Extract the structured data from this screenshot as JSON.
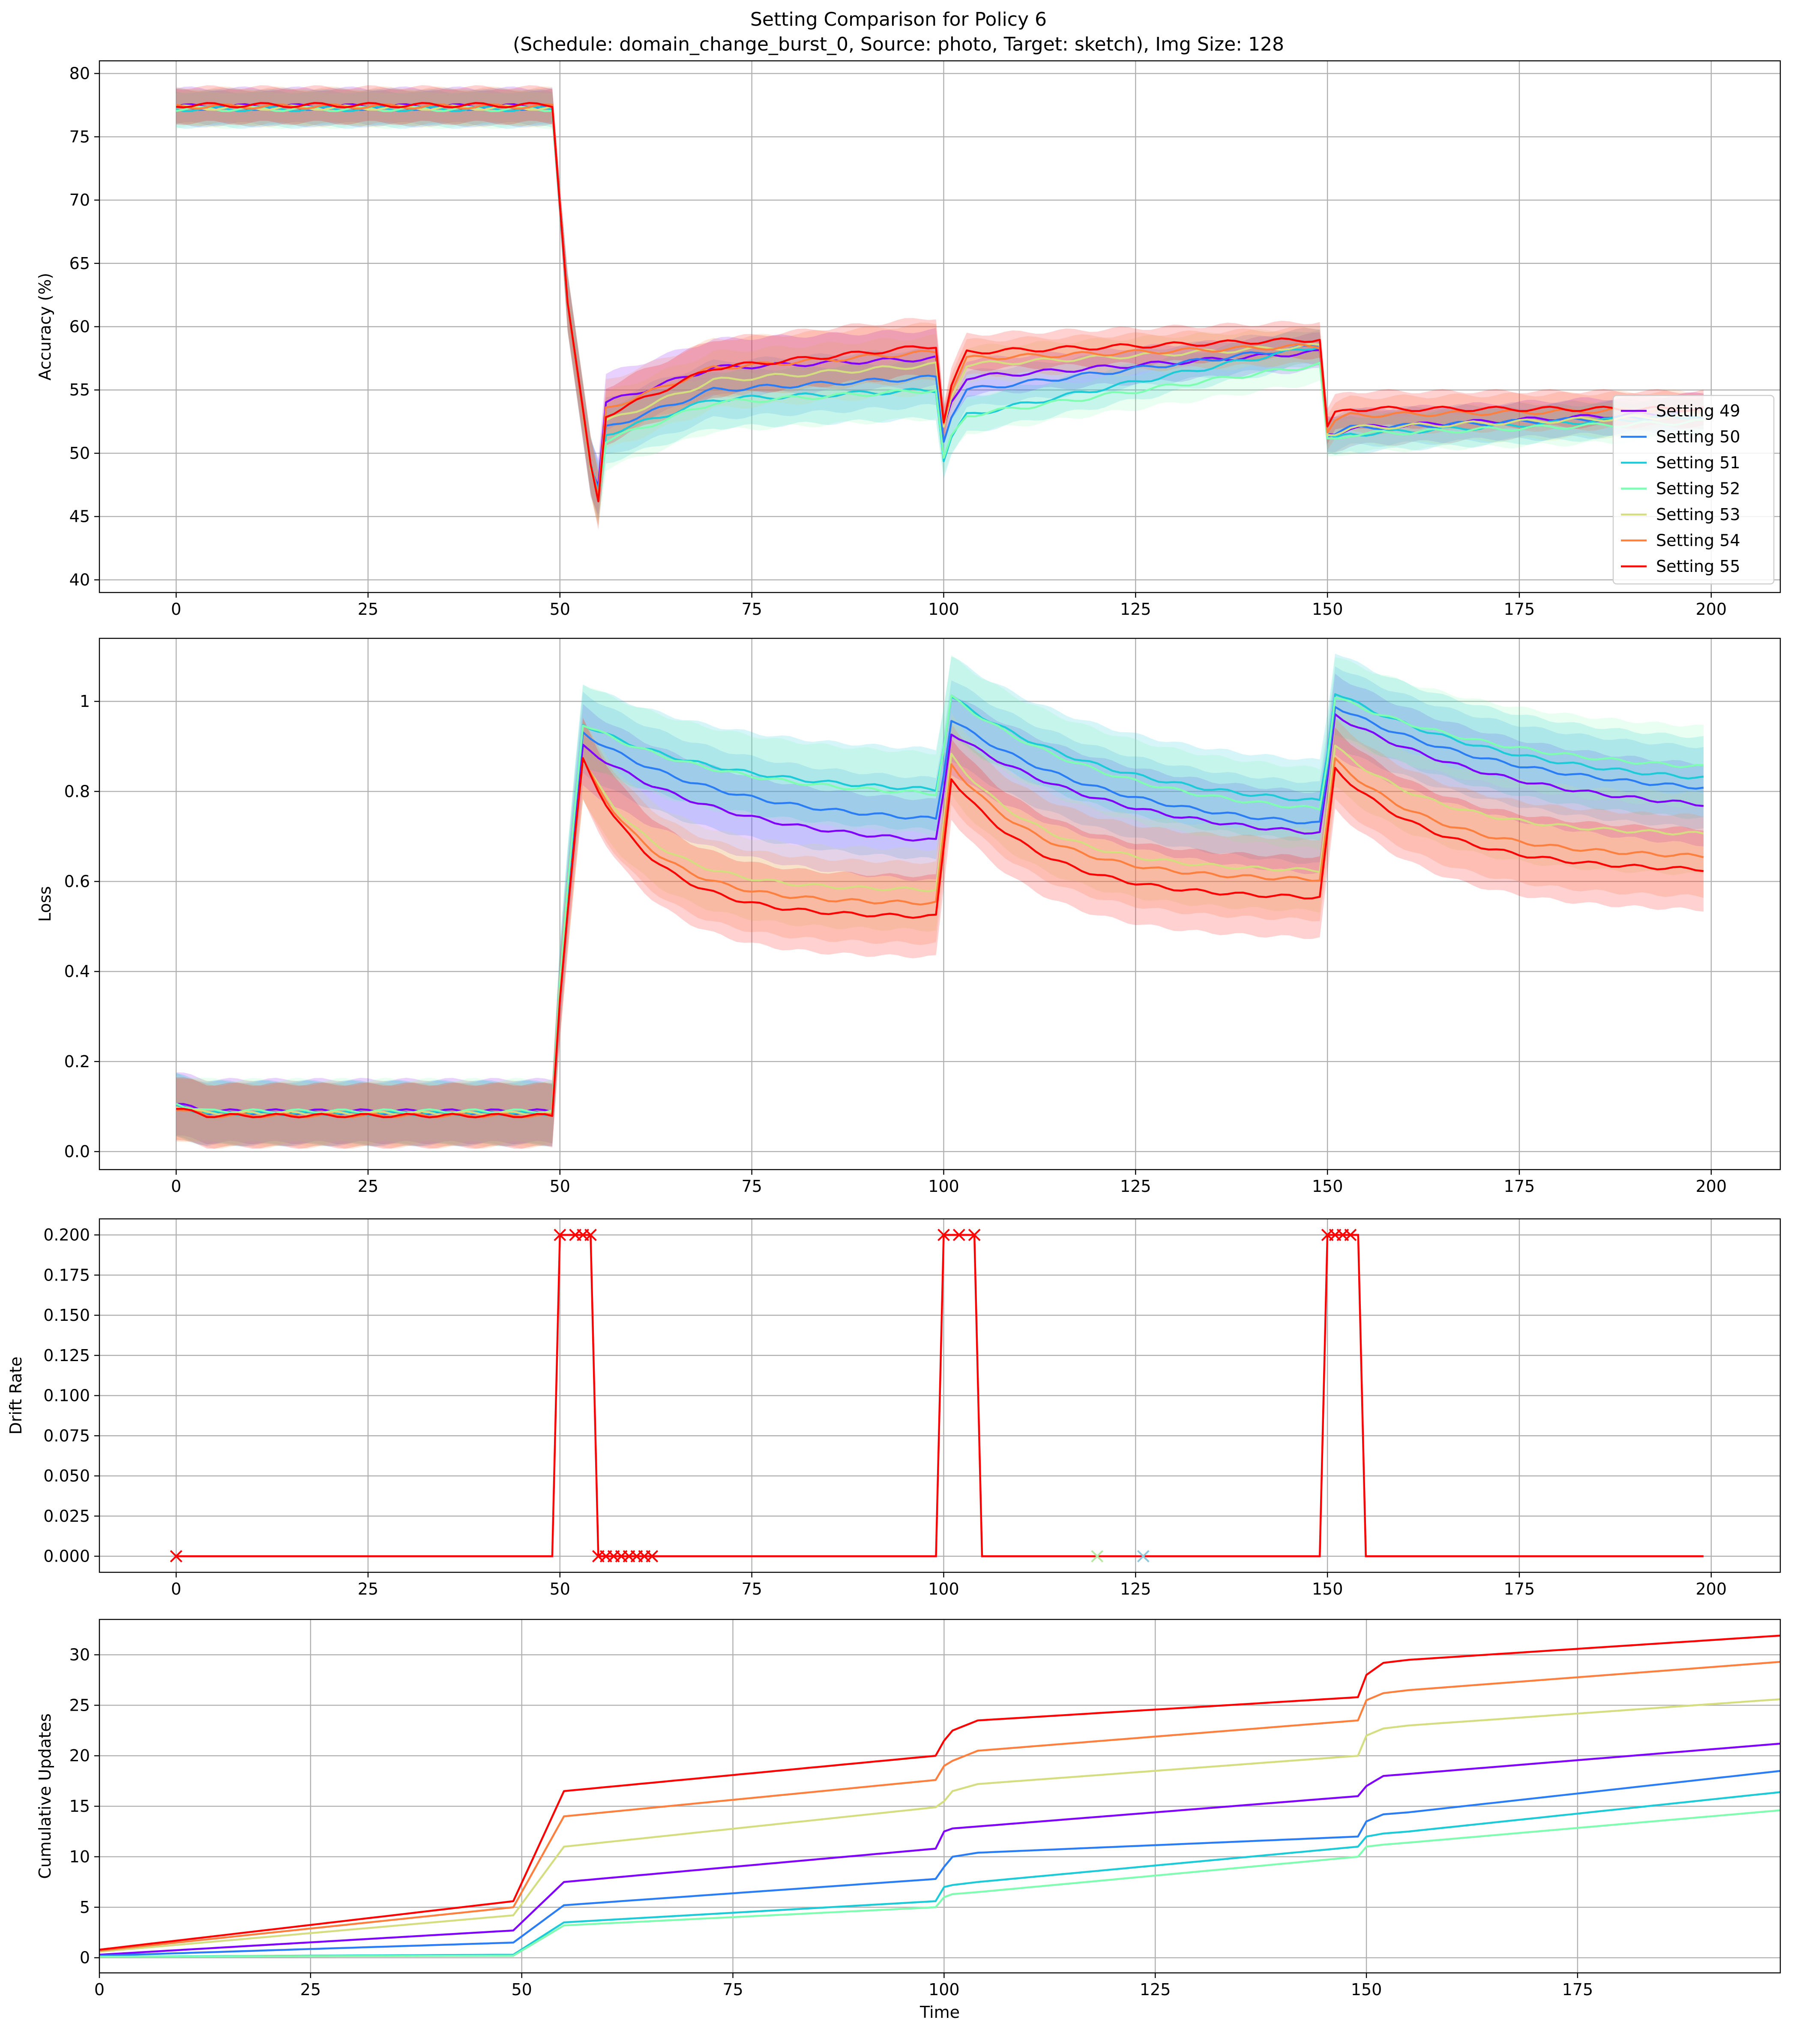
{
  "figure": {
    "title_line1": "Setting Comparison for Policy 6",
    "title_line2": "(Schedule: domain_change_burst_0, Source: photo, Target: sketch), Img Size: 128"
  },
  "series": [
    {
      "name": "Setting 49",
      "color": "#8000ff"
    },
    {
      "name": "Setting 50",
      "color": "#2a7df5"
    },
    {
      "name": "Setting 51",
      "color": "#1ccad8"
    },
    {
      "name": "Setting 52",
      "color": "#7ffeb2"
    },
    {
      "name": "Setting 53",
      "color": "#d4dd80"
    },
    {
      "name": "Setting 54",
      "color": "#ff7f3f"
    },
    {
      "name": "Setting 55",
      "color": "#ff0000"
    }
  ],
  "chart_data": [
    {
      "type": "line",
      "id": "accuracy",
      "ylabel": "Accuracy (%)",
      "xlim": [
        -10,
        209
      ],
      "ylim": [
        39,
        81
      ],
      "xticks": [
        0,
        25,
        50,
        75,
        100,
        125,
        150,
        175,
        200
      ],
      "yticks": [
        40,
        45,
        50,
        55,
        60,
        65,
        70,
        75,
        80
      ],
      "grid": true,
      "legend": "lower-right",
      "band": 1.4,
      "levels": {
        "seg0": [
          77.4,
          77.3,
          77.2,
          77.2,
          77.3,
          77.4,
          77.5
        ],
        "dip": [
          47.5,
          47.0,
          46.8,
          46.6,
          46.5,
          46.4,
          46.2
        ],
        "seg1_start": [
          54.0,
          52.0,
          51.5,
          51.0,
          52.5,
          53.5,
          53.0
        ],
        "seg1_end": [
          57.5,
          56.0,
          55.0,
          55.0,
          57.0,
          58.0,
          58.5
        ],
        "dip2": [
          52.0,
          51.0,
          49.5,
          49.5,
          52.0,
          52.5,
          52.5
        ],
        "seg2_start": [
          56.0,
          55.0,
          53.0,
          53.0,
          57.0,
          57.5,
          58.0
        ],
        "seg2_end": [
          58.0,
          58.5,
          58.5,
          57.0,
          58.5,
          58.5,
          59.0
        ],
        "dip3": [
          51.5,
          51.5,
          51.5,
          51.0,
          51.5,
          51.8,
          52.0
        ],
        "seg3_start": [
          52.0,
          52.0,
          51.5,
          51.5,
          52.0,
          53.0,
          53.5
        ],
        "seg3_end": [
          53.3,
          53.0,
          53.0,
          52.5,
          53.0,
          53.5,
          53.5
        ]
      }
    },
    {
      "type": "line",
      "id": "loss",
      "ylabel": "Loss",
      "xlim": [
        -10,
        209
      ],
      "ylim": [
        -0.04,
        1.14
      ],
      "xticks": [
        0,
        25,
        50,
        75,
        100,
        125,
        150,
        175,
        200
      ],
      "yticks": [
        0.0,
        0.2,
        0.4,
        0.6,
        0.8,
        1.0
      ],
      "grid": true,
      "band_low": 0.07,
      "band_high": 0.09,
      "levels": {
        "seg0": [
          0.09,
          0.085,
          0.085,
          0.09,
          0.085,
          0.08,
          0.08
        ],
        "peak1": [
          0.9,
          0.93,
          0.95,
          0.95,
          0.87,
          0.87,
          0.87
        ],
        "seg1_end": [
          0.67,
          0.72,
          0.79,
          0.78,
          0.58,
          0.55,
          0.52
        ],
        "peak2": [
          0.93,
          0.96,
          1.01,
          1.01,
          0.88,
          0.86,
          0.83
        ],
        "seg2_end": [
          0.68,
          0.7,
          0.75,
          0.73,
          0.62,
          0.6,
          0.56
        ],
        "peak3": [
          0.97,
          0.99,
          1.02,
          1.01,
          0.9,
          0.87,
          0.85
        ],
        "seg3_end": [
          0.74,
          0.78,
          0.8,
          0.83,
          0.7,
          0.65,
          0.62
        ]
      }
    },
    {
      "type": "line",
      "id": "drift",
      "ylabel": "Drift Rate",
      "xlim": [
        -10,
        209
      ],
      "ylim": [
        -0.01,
        0.21
      ],
      "xticks": [
        0,
        25,
        50,
        75,
        100,
        125,
        150,
        175,
        200
      ],
      "yticks": [
        0.0,
        0.025,
        0.05,
        0.075,
        0.1,
        0.125,
        0.15,
        0.175,
        0.2
      ],
      "ytick_labels": [
        "0.000",
        "0.025",
        "0.050",
        "0.075",
        "0.100",
        "0.125",
        "0.150",
        "0.175",
        "0.200"
      ],
      "grid": true,
      "x": [
        0,
        49,
        50,
        54,
        55,
        99,
        100,
        104,
        105,
        149,
        150,
        154,
        155,
        199
      ],
      "y": [
        0,
        0,
        0.2,
        0.2,
        0,
        0,
        0.2,
        0.2,
        0,
        0,
        0.2,
        0.2,
        0,
        0
      ],
      "markers": [
        {
          "x": 0,
          "y": 0,
          "color": "#ff0000"
        },
        {
          "x": 50,
          "y": 0.2,
          "color": "#ff0000"
        },
        {
          "x": 52,
          "y": 0.2,
          "color": "#ff0000"
        },
        {
          "x": 53,
          "y": 0.2,
          "color": "#ff0000"
        },
        {
          "x": 54,
          "y": 0.2,
          "color": "#ff0000"
        },
        {
          "x": 55,
          "y": 0,
          "color": "#ff0000"
        },
        {
          "x": 56,
          "y": 0,
          "color": "#ff0000"
        },
        {
          "x": 57,
          "y": 0,
          "color": "#ff0000"
        },
        {
          "x": 58,
          "y": 0,
          "color": "#ff0000"
        },
        {
          "x": 59,
          "y": 0,
          "color": "#ff0000"
        },
        {
          "x": 60,
          "y": 0,
          "color": "#ff0000"
        },
        {
          "x": 61,
          "y": 0,
          "color": "#ff0000"
        },
        {
          "x": 62,
          "y": 0,
          "color": "#ff0000"
        },
        {
          "x": 100,
          "y": 0.2,
          "color": "#ff0000"
        },
        {
          "x": 102,
          "y": 0.2,
          "color": "#ff0000"
        },
        {
          "x": 104,
          "y": 0.2,
          "color": "#ff0000"
        },
        {
          "x": 120,
          "y": 0,
          "color": "#b5e8a0"
        },
        {
          "x": 126,
          "y": 0,
          "color": "#8fc6d8"
        },
        {
          "x": 150,
          "y": 0.2,
          "color": "#ff0000"
        },
        {
          "x": 151,
          "y": 0.2,
          "color": "#ff0000"
        },
        {
          "x": 152,
          "y": 0.2,
          "color": "#ff0000"
        },
        {
          "x": 153,
          "y": 0.2,
          "color": "#ff0000"
        }
      ]
    },
    {
      "type": "line",
      "id": "cumulative",
      "ylabel": "Cumulative Updates",
      "xlabel": "Time",
      "xlim": [
        0,
        199
      ],
      "ylim": [
        -1.5,
        33.5
      ],
      "xticks": [
        0,
        25,
        50,
        75,
        100,
        125,
        150,
        175
      ],
      "yticks": [
        0,
        5,
        10,
        15,
        20,
        25,
        30
      ],
      "grid": true,
      "x": [
        0,
        49,
        55,
        99,
        100,
        101,
        104,
        149,
        150,
        152,
        155,
        199
      ],
      "series_values": [
        [
          0.3,
          2.7,
          7.5,
          10.8,
          12.5,
          12.8,
          13.0,
          16.0,
          17.0,
          18.0,
          18.2,
          21.2
        ],
        [
          0.2,
          1.5,
          5.2,
          7.8,
          9.0,
          10.0,
          10.4,
          12.0,
          13.5,
          14.2,
          14.4,
          18.5
        ],
        [
          0.1,
          0.3,
          3.5,
          5.6,
          7.0,
          7.2,
          7.5,
          11.0,
          12.0,
          12.3,
          12.5,
          16.4
        ],
        [
          0.1,
          0.2,
          3.2,
          5.0,
          6.0,
          6.3,
          6.5,
          10.0,
          11.0,
          11.2,
          11.4,
          14.6
        ],
        [
          0.6,
          4.2,
          11.0,
          14.9,
          15.5,
          16.5,
          17.2,
          20.0,
          22.0,
          22.7,
          23.0,
          25.6
        ],
        [
          0.7,
          5.0,
          14.0,
          17.6,
          19.0,
          19.5,
          20.5,
          23.5,
          25.5,
          26.2,
          26.5,
          29.3
        ],
        [
          0.8,
          5.6,
          16.5,
          20.0,
          21.5,
          22.5,
          23.5,
          25.8,
          28.0,
          29.2,
          29.5,
          31.9
        ]
      ]
    }
  ]
}
